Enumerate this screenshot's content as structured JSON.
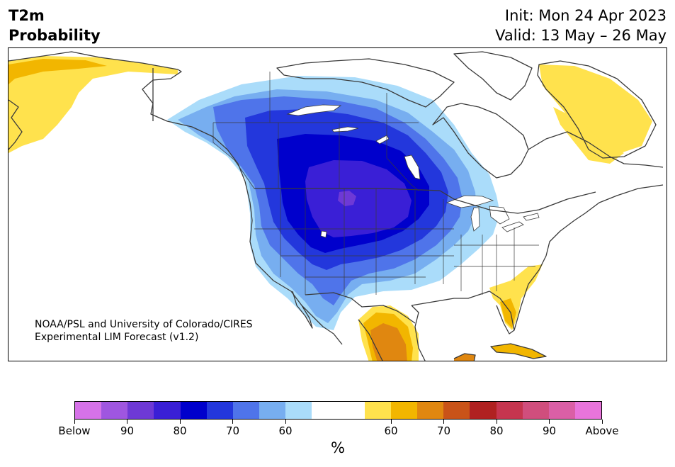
{
  "header": {
    "title_line1": "T2m",
    "title_line2": "Probability",
    "init": "Init: Mon 24 Apr 2023",
    "valid": "Valid: 13 May – 26 May"
  },
  "credit": {
    "line1": "NOAA/PSL and University of Colorado/CIRES",
    "line2": "Experimental LIM Forecast (v1.2)"
  },
  "colorbar": {
    "unit": "%",
    "colors": [
      "#d672e8",
      "#9f56e0",
      "#6e39d6",
      "#3a1fd6",
      "#0000cc",
      "#2337dc",
      "#4f74ea",
      "#77aef0",
      "#aadcfa",
      "#ffffff",
      "#ffffff",
      "#ffe24d",
      "#f2b600",
      "#e08710",
      "#c95318",
      "#b02121",
      "#c6354f",
      "#d04e7d",
      "#da5fa6",
      "#e874db"
    ],
    "tick_labels": [
      "Below",
      "90",
      "80",
      "70",
      "60",
      "60",
      "70",
      "80",
      "90",
      "Above"
    ]
  },
  "map": {
    "region": "North America",
    "palette": {
      "cold_60": "#aadcfa",
      "cold_70": "#77aef0",
      "cold_75": "#4f74ea",
      "cold_80": "#2337dc",
      "cold_85": "#0000cc",
      "cold_90": "#3a1fd6",
      "cold_95": "#6e39d6",
      "warm_60": "#ffe24d",
      "warm_70": "#f2b600",
      "warm_75": "#e08710",
      "border": "#3a3a3a"
    }
  }
}
